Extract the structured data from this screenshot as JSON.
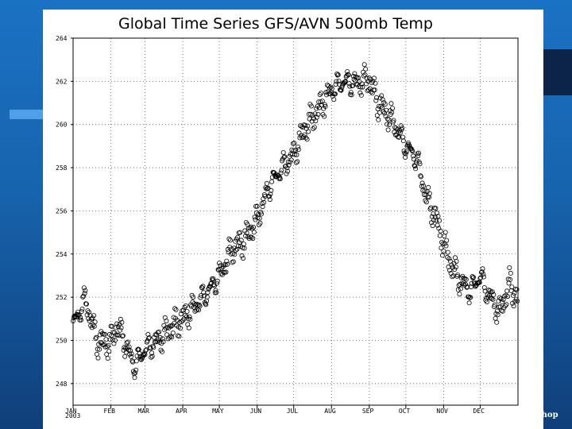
{
  "slide": {
    "footer_fragment": "shop",
    "colors": {
      "background": "#1a6ab9",
      "panel": "#ffffff",
      "marker": "#000000"
    }
  },
  "chart_data": {
    "type": "scatter",
    "title": "Global Time Series GFS/AVN 500mb Temp",
    "xlabel": "",
    "ylabel": "",
    "year_label": "2003",
    "y_tick_labels": [
      "264",
      "262",
      "260",
      "258",
      "256",
      "254",
      "252",
      "250",
      "248"
    ],
    "x_tick_labels": [
      "JAN",
      "FEB",
      "MAR",
      "APR",
      "MAY",
      "JUN",
      "JUL",
      "AUG",
      "SEP",
      "OCT",
      "NOV",
      "DEC"
    ],
    "xlim": [
      0,
      365
    ],
    "grid": true,
    "marker": "open-circle",
    "series": [
      {
        "name": "500mb Temp",
        "x_days": [
          0,
          10,
          20,
          31,
          36,
          42,
          50,
          59,
          70,
          80,
          90,
          100,
          110,
          120,
          130,
          140,
          151,
          160,
          170,
          181,
          190,
          200,
          212,
          222,
          232,
          243,
          250,
          262,
          273,
          282,
          290,
          298,
          304,
          310,
          318,
          326,
          334,
          340,
          350,
          358,
          365
        ],
        "values": [
          250.7,
          251.9,
          249.9,
          249.9,
          250.7,
          250.0,
          248.8,
          249.6,
          250.0,
          250.6,
          251.0,
          251.6,
          252.2,
          253.0,
          254.2,
          254.6,
          255.6,
          257.0,
          257.9,
          258.6,
          259.8,
          260.6,
          261.6,
          262.0,
          261.9,
          262.1,
          261.0,
          260.2,
          259.0,
          258.4,
          256.6,
          255.6,
          254.5,
          253.5,
          252.7,
          252.3,
          253.0,
          252.2,
          251.3,
          252.6,
          251.9
        ]
      }
    ]
  }
}
